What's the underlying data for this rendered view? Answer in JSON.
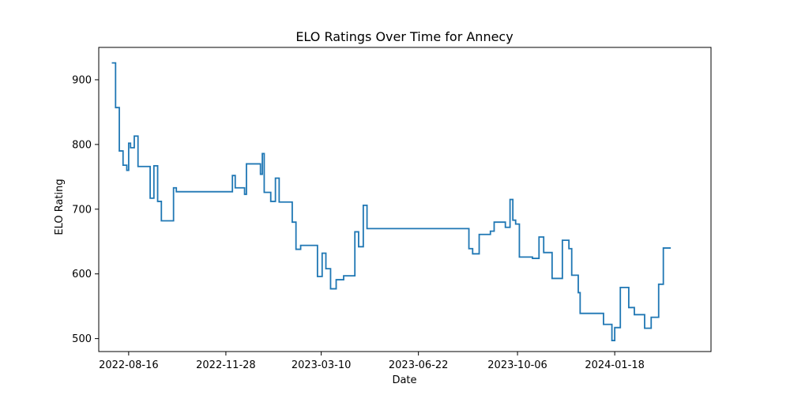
{
  "chart_data": {
    "type": "line",
    "title": "ELO Ratings Over Time for Annecy",
    "xlabel": "Date",
    "ylabel": "ELO Rating",
    "x_ticks": [
      "2022-08-16",
      "2022-11-28",
      "2023-03-10",
      "2023-06-22",
      "2023-10-06",
      "2024-01-18"
    ],
    "y_ticks": [
      500,
      600,
      700,
      800,
      900
    ],
    "xlim": [
      "2022-07-15",
      "2024-04-30"
    ],
    "ylim": [
      480,
      950
    ],
    "grid": false,
    "line_style": "steps-post",
    "colors": {
      "series": "#1f77b4"
    },
    "series": [
      {
        "points": [
          [
            "2022-07-29",
            926
          ],
          [
            "2022-08-02",
            857
          ],
          [
            "2022-08-06",
            790
          ],
          [
            "2022-08-10",
            768
          ],
          [
            "2022-08-14",
            760
          ],
          [
            "2022-08-16",
            802
          ],
          [
            "2022-08-18",
            795
          ],
          [
            "2022-08-22",
            813
          ],
          [
            "2022-08-26",
            766
          ],
          [
            "2022-09-08",
            717
          ],
          [
            "2022-09-12",
            767
          ],
          [
            "2022-09-16",
            712
          ],
          [
            "2022-09-20",
            682
          ],
          [
            "2022-10-03",
            733
          ],
          [
            "2022-10-06",
            727
          ],
          [
            "2022-12-05",
            752
          ],
          [
            "2022-12-08",
            733
          ],
          [
            "2022-12-18",
            723
          ],
          [
            "2022-12-20",
            770
          ],
          [
            "2023-01-04",
            754
          ],
          [
            "2023-01-06",
            786
          ],
          [
            "2023-01-08",
            726
          ],
          [
            "2023-01-15",
            712
          ],
          [
            "2023-01-20",
            748
          ],
          [
            "2023-01-24",
            711
          ],
          [
            "2023-02-07",
            680
          ],
          [
            "2023-02-11",
            638
          ],
          [
            "2023-02-16",
            644
          ],
          [
            "2023-03-06",
            596
          ],
          [
            "2023-03-11",
            632
          ],
          [
            "2023-03-15",
            608
          ],
          [
            "2023-03-20",
            577
          ],
          [
            "2023-03-26",
            591
          ],
          [
            "2023-04-03",
            597
          ],
          [
            "2023-04-15",
            665
          ],
          [
            "2023-04-19",
            642
          ],
          [
            "2023-04-24",
            706
          ],
          [
            "2023-04-28",
            670
          ],
          [
            "2023-08-15",
            639
          ],
          [
            "2023-08-19",
            631
          ],
          [
            "2023-08-26",
            661
          ],
          [
            "2023-09-07",
            666
          ],
          [
            "2023-09-11",
            680
          ],
          [
            "2023-09-23",
            672
          ],
          [
            "2023-09-28",
            715
          ],
          [
            "2023-10-01",
            683
          ],
          [
            "2023-10-04",
            677
          ],
          [
            "2023-10-08",
            626
          ],
          [
            "2023-10-22",
            624
          ],
          [
            "2023-10-29",
            657
          ],
          [
            "2023-11-03",
            633
          ],
          [
            "2023-11-12",
            593
          ],
          [
            "2023-11-23",
            652
          ],
          [
            "2023-11-30",
            639
          ],
          [
            "2023-12-03",
            598
          ],
          [
            "2023-12-10",
            571
          ],
          [
            "2023-12-12",
            539
          ],
          [
            "2024-01-06",
            522
          ],
          [
            "2024-01-15",
            497
          ],
          [
            "2024-01-18",
            517
          ],
          [
            "2024-01-24",
            579
          ],
          [
            "2024-02-02",
            548
          ],
          [
            "2024-02-08",
            537
          ],
          [
            "2024-02-19",
            516
          ],
          [
            "2024-02-26",
            533
          ],
          [
            "2024-03-05",
            584
          ],
          [
            "2024-03-10",
            640
          ],
          [
            "2024-03-18",
            640
          ]
        ]
      }
    ]
  }
}
